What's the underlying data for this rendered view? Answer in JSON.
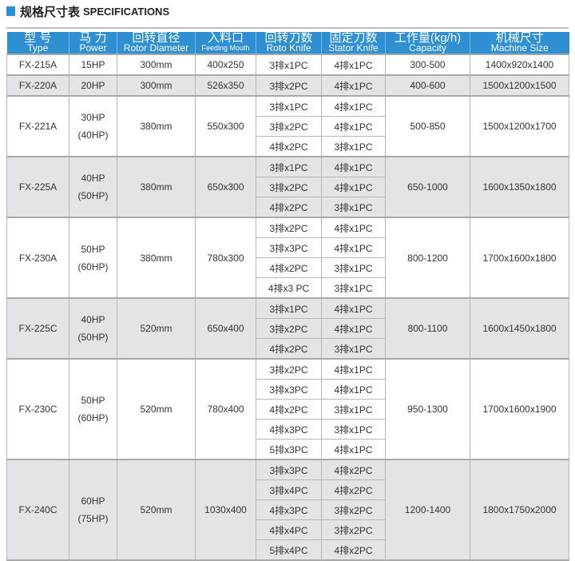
{
  "title": {
    "cn": "规格尺寸表",
    "en": "SPECIFICATIONS"
  },
  "colors": {
    "accent": "#2f8fd3",
    "gray_row": "#e4e4e6"
  },
  "headers": [
    {
      "cn": "型 号",
      "en": "Type"
    },
    {
      "cn": "马 力",
      "en": "Power"
    },
    {
      "cn": "回转直径",
      "en": "Rotor Diameter"
    },
    {
      "cn": "入料口",
      "en": "Feeding Mouth"
    },
    {
      "cn": "回转刀数",
      "en": "Roto Knife"
    },
    {
      "cn": "固定刀数",
      "en": "Stator Knife"
    },
    {
      "cn": "工作量(kg/h)",
      "en": "Capacity"
    },
    {
      "cn": "机械尺寸",
      "en": "Machine Size"
    }
  ],
  "rows": [
    {
      "type": "FX-215A",
      "power": [
        "15HP"
      ],
      "rotor": "300mm",
      "feeding": "400x250",
      "knives": [
        [
          "3排x1PC",
          "4排x1PC"
        ]
      ],
      "capacity": "300-500",
      "size": "1400x920x1400"
    },
    {
      "type": "FX-220A",
      "power": [
        "20HP"
      ],
      "rotor": "300mm",
      "feeding": "526x350",
      "knives": [
        [
          "3排x2PC",
          "4排x1PC"
        ]
      ],
      "capacity": "400-600",
      "size": "1500x1200x1500"
    },
    {
      "type": "FX-221A",
      "power": [
        "30HP",
        "(40HP)"
      ],
      "rotor": "380mm",
      "feeding": "550x300",
      "knives": [
        [
          "3排x1PC",
          "4排x1PC"
        ],
        [
          "3排x2PC",
          "4排x1PC"
        ],
        [
          "4排x2PC",
          "3排x1PC"
        ]
      ],
      "capacity": "500-850",
      "size": "1500x1200x1700"
    },
    {
      "type": "FX-225A",
      "power": [
        "40HP",
        "(50HP)"
      ],
      "rotor": "380mm",
      "feeding": "650x300",
      "knives": [
        [
          "3排x1PC",
          "4排x1PC"
        ],
        [
          "3排x2PC",
          "4排x1PC"
        ],
        [
          "4排x2PC",
          "3排x1PC"
        ]
      ],
      "capacity": "650-1000",
      "size": "1600x1350x1800"
    },
    {
      "type": "FX-230A",
      "power": [
        "50HP",
        "(60HP)"
      ],
      "rotor": "380mm",
      "feeding": "780x300",
      "knives": [
        [
          "3排x2PC",
          "4排x1PC"
        ],
        [
          "3排x3PC",
          "4排x1PC"
        ],
        [
          "4排x2PC",
          "3排x1PC"
        ],
        [
          "4排x3 PC",
          "3排x1PC"
        ]
      ],
      "capacity": "800-1200",
      "size": "1700x1600x1800"
    },
    {
      "type": "FX-225C",
      "power": [
        "40HP",
        "(50HP)"
      ],
      "rotor": "520mm",
      "feeding": "650x400",
      "knives": [
        [
          "3排x1PC",
          "4排x1PC"
        ],
        [
          "3排x2PC",
          "4排x1PC"
        ],
        [
          "4排x2PC",
          "3排x1PC"
        ]
      ],
      "capacity": "800-1100",
      "size": "1600x1450x1800"
    },
    {
      "type": "FX-230C",
      "power": [
        "50HP",
        "(60HP)"
      ],
      "rotor": "520mm",
      "feeding": "780x400",
      "knives": [
        [
          "3排x2PC",
          "4排x1PC"
        ],
        [
          "3排x3PC",
          "4排x1PC"
        ],
        [
          "4排x2PC",
          "3排x1PC"
        ],
        [
          "4排x3PC",
          "3排x1PC"
        ],
        [
          "5排x3PC",
          "4排x1PC"
        ]
      ],
      "capacity": "950-1300",
      "size": "1700x1600x1900"
    },
    {
      "type": "FX-240C",
      "power": [
        "60HP",
        "(75HP)"
      ],
      "rotor": "520mm",
      "feeding": "1030x400",
      "knives": [
        [
          "3排x3PC",
          "4排x2PC"
        ],
        [
          "3排x4PC",
          "4排x2PC"
        ],
        [
          "4排x3PC",
          "3排x2PC"
        ],
        [
          "4排x4PC",
          "3排x2PC"
        ],
        [
          "5排x4PC",
          "4排x2PC"
        ]
      ],
      "capacity": "1200-1400",
      "size": "1800x1750x2000"
    }
  ]
}
